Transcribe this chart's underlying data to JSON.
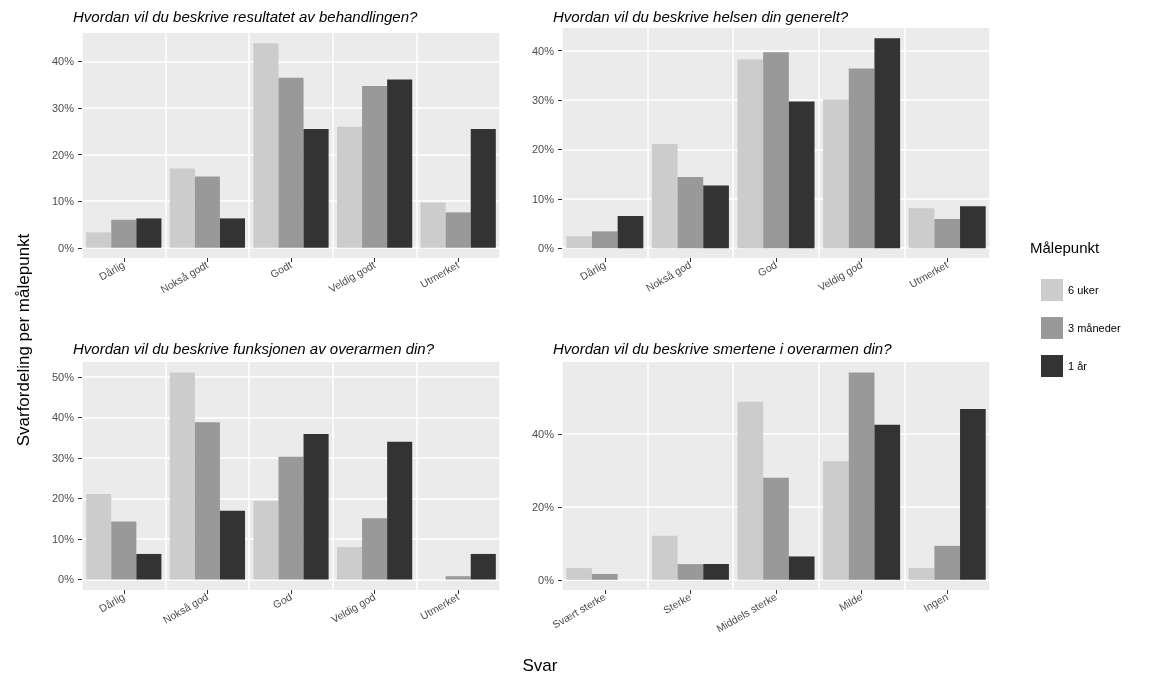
{
  "chart_data": [
    {
      "type": "bar",
      "title": "Hvordan vil du beskrive resultatet av behandlingen?",
      "xlabel": "Svar",
      "ylabel": "Svarfordeling per målepunkt",
      "legend_title": "Målepunkt",
      "legend": "right",
      "grid": true,
      "categories": [
        "Dårlig",
        "Nokså godt",
        "Godt",
        "Veldig godt",
        "Utmerket"
      ],
      "ylim": [
        -2.2,
        46.1
      ],
      "yticks": [
        {
          "value": 0,
          "label": "0%"
        },
        {
          "value": 10,
          "label": "10%"
        },
        {
          "value": 20,
          "label": "20%"
        },
        {
          "value": 30,
          "label": "30%"
        },
        {
          "value": 40,
          "label": "40%"
        }
      ],
      "series": [
        {
          "name": "6 uker",
          "color": "#cccccc",
          "values": [
            3.3,
            17.0,
            43.9,
            26.0,
            9.7
          ]
        },
        {
          "name": "3 måneder",
          "color": "#999999",
          "values": [
            6.0,
            15.3,
            36.5,
            34.7,
            7.6
          ]
        },
        {
          "name": "1 år",
          "color": "#333333",
          "values": [
            6.3,
            6.3,
            25.5,
            36.1,
            25.5
          ]
        }
      ]
    },
    {
      "type": "bar",
      "title": "Hvordan vil du beskrive helsen din generelt?",
      "grid": true,
      "categories": [
        "Dårlig",
        "Nokså god",
        "God",
        "Veldig god",
        "Utmerket"
      ],
      "ylim": [
        -2.0,
        44.6
      ],
      "yticks": [
        {
          "value": 0,
          "label": "0%"
        },
        {
          "value": 10,
          "label": "10%"
        },
        {
          "value": 20,
          "label": "20%"
        },
        {
          "value": 30,
          "label": "30%"
        },
        {
          "value": 40,
          "label": "40%"
        }
      ],
      "series": [
        {
          "color": "#cccccc",
          "values": [
            2.4,
            21.1,
            38.2,
            30.1,
            8.1
          ]
        },
        {
          "color": "#999999",
          "values": [
            3.4,
            14.4,
            39.7,
            36.4,
            5.9
          ]
        },
        {
          "color": "#333333",
          "values": [
            6.5,
            12.7,
            29.7,
            42.5,
            8.5
          ]
        }
      ]
    },
    {
      "type": "bar",
      "title": "Hvordan vil du beskrive funksjonen av overarmen din?",
      "grid": true,
      "categories": [
        "Dårlig",
        "Nokså god",
        "God",
        "Veldig god",
        "Utmerket"
      ],
      "ylim": [
        -2.6,
        53.7
      ],
      "yticks": [
        {
          "value": 0,
          "label": "0%"
        },
        {
          "value": 10,
          "label": "10%"
        },
        {
          "value": 20,
          "label": "20%"
        },
        {
          "value": 30,
          "label": "30%"
        },
        {
          "value": 40,
          "label": "40%"
        },
        {
          "value": 50,
          "label": "50%"
        }
      ],
      "series": [
        {
          "color": "#cccccc",
          "values": [
            21.1,
            51.1,
            19.4,
            8.0,
            null
          ]
        },
        {
          "color": "#999999",
          "values": [
            14.3,
            38.8,
            30.3,
            15.1,
            0.8
          ]
        },
        {
          "color": "#333333",
          "values": [
            6.3,
            17.0,
            35.9,
            34.0,
            6.3
          ]
        }
      ]
    },
    {
      "type": "bar",
      "title": "Hvordan vil du beskrive smertene i overarmen din?",
      "grid": true,
      "categories": [
        "Svært sterke",
        "Sterke",
        "Middels sterke",
        "Milde",
        "Ingen"
      ],
      "ylim": [
        -2.8,
        59.7
      ],
      "yticks": [
        {
          "value": 0,
          "label": "0%"
        },
        {
          "value": 20,
          "label": "20%"
        },
        {
          "value": 40,
          "label": "40%"
        }
      ],
      "series": [
        {
          "color": "#cccccc",
          "values": [
            3.2,
            12.1,
            48.8,
            32.5,
            3.2
          ]
        },
        {
          "color": "#999999",
          "values": [
            1.6,
            4.3,
            28.0,
            56.8,
            9.3
          ]
        },
        {
          "color": "#333333",
          "values": [
            null,
            4.3,
            6.4,
            42.5,
            46.8
          ]
        }
      ]
    }
  ]
}
